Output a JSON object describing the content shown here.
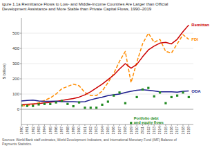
{
  "chart_data": {
    "type": "line",
    "title": "igure 1.1a Remittance Flows to Low- and Middle-Income Countries Are Larger than Official\nDevelopment Assistance and More Stable than Private Capital Flows, 1990–2019",
    "y_label": "$ billion)",
    "source": "Sources: World Bank staff estimates, World Development Indicators, and International Monetary Fund (IMF) Balance of\nPayments Statistics.",
    "x": [
      1990,
      1991,
      1992,
      1993,
      1994,
      1995,
      1996,
      1997,
      1998,
      1999,
      2000,
      2001,
      2002,
      2003,
      2004,
      2005,
      2006,
      2007,
      2008,
      2009,
      2010,
      2011,
      2012,
      2013,
      2014,
      2015,
      2016,
      2017,
      2018,
      2019
    ],
    "xlim": [
      1990,
      2019.8
    ],
    "xticks": [
      1990,
      1991,
      1992,
      1993,
      1994,
      1995,
      1996,
      1997,
      1998,
      1999,
      2000,
      2001,
      2002,
      2003,
      2004,
      2005,
      2006,
      2007,
      2008,
      2009,
      2010,
      2011,
      2012,
      2013,
      2014,
      2015,
      2016,
      2017,
      2018,
      2019
    ],
    "ylim": [
      -100,
      600
    ],
    "yticks": [
      0,
      100,
      200,
      300,
      400,
      500
    ],
    "grid": true,
    "series": [
      {
        "name": "FDI",
        "color": "#ff8c00",
        "line_style": "dashed",
        "values": [
          22,
          26,
          32,
          42,
          58,
          75,
          100,
          135,
          150,
          165,
          155,
          110,
          90,
          90,
          120,
          175,
          235,
          315,
          380,
          175,
          310,
          430,
          500,
          440,
          460,
          380,
          370,
          430,
          490,
          460
        ]
      },
      {
        "name": "Remittan",
        "color": "#cc0000",
        "line_style": "solid",
        "values": [
          30,
          33,
          35,
          37,
          42,
          46,
          51,
          58,
          65,
          70,
          80,
          95,
          115,
          140,
          165,
          195,
          225,
          265,
          300,
          270,
          295,
          345,
          390,
          415,
          435,
          440,
          430,
          460,
          510,
          554
        ]
      },
      {
        "name": "ODA",
        "color": "#1a1a8c",
        "line_style": "solid",
        "values": [
          55,
          58,
          60,
          55,
          52,
          52,
          53,
          50,
          50,
          50,
          48,
          50,
          62,
          72,
          80,
          90,
          95,
          100,
          110,
          118,
          125,
          128,
          125,
          120,
          115,
          115,
          115,
          112,
          118,
          120
        ]
      },
      {
        "name": "Portfolio debt\nand equity flows",
        "color": "#228b22",
        "line_style": "none",
        "marker": "square",
        "values": [
          25,
          22,
          22,
          32,
          35,
          35,
          45,
          55,
          35,
          20,
          45,
          10,
          10,
          10,
          30,
          50,
          90,
          110,
          40,
          -90,
          80,
          130,
          140,
          85,
          110,
          40,
          80,
          90,
          110,
          80
        ]
      }
    ]
  }
}
